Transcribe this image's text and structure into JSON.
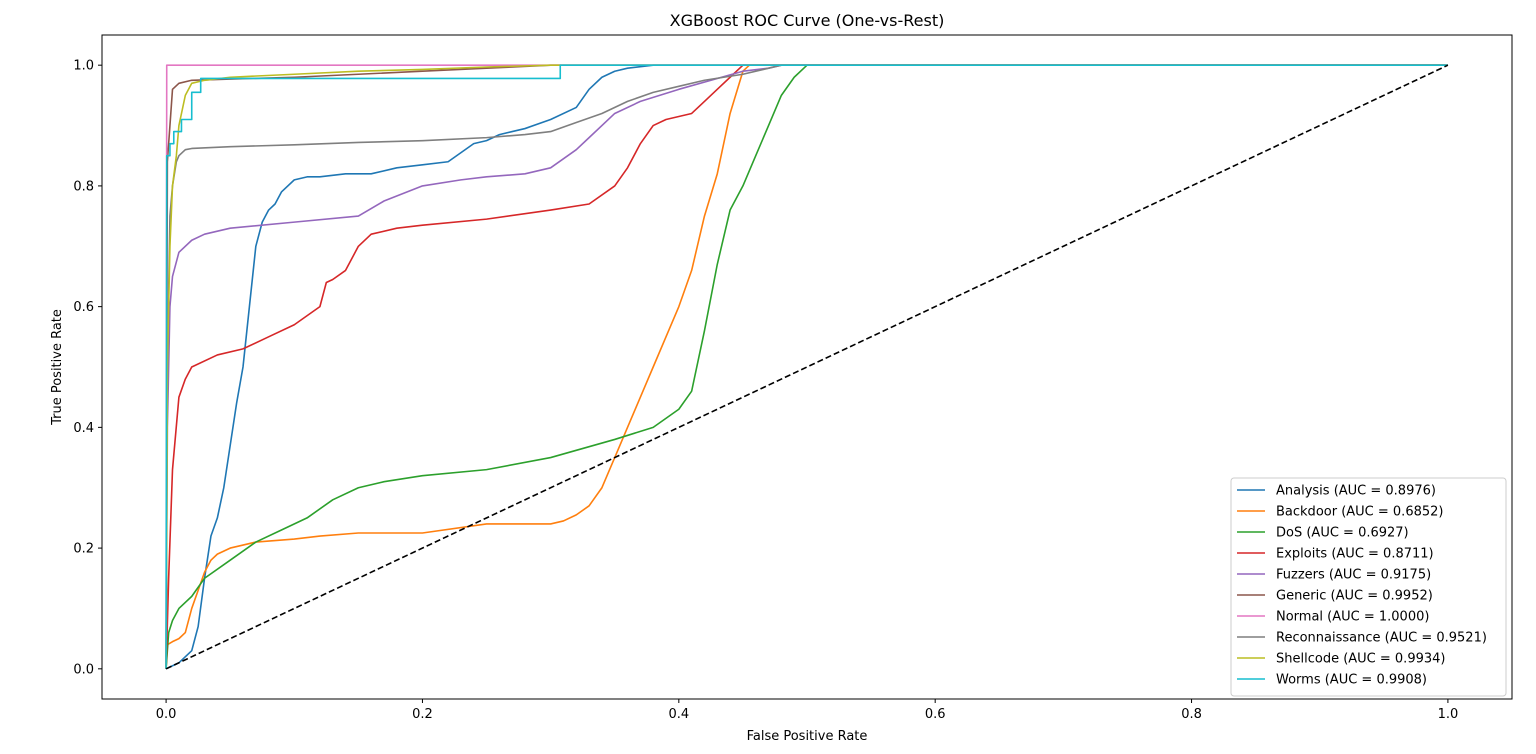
{
  "chart_data": {
    "type": "line",
    "title": "XGBoost ROC Curve (One-vs-Rest)",
    "xlabel": "False Positive Rate",
    "ylabel": "True Positive Rate",
    "xlim": [
      -0.05,
      1.05
    ],
    "ylim": [
      -0.05,
      1.05
    ],
    "x_ticks": [
      0.0,
      0.2,
      0.4,
      0.6,
      0.8,
      1.0
    ],
    "y_ticks": [
      0.0,
      0.2,
      0.4,
      0.6,
      0.8,
      1.0
    ],
    "x_tick_labels": [
      "0.0",
      "0.2",
      "0.4",
      "0.6",
      "0.8",
      "1.0"
    ],
    "y_tick_labels": [
      "0.0",
      "0.2",
      "0.4",
      "0.6",
      "0.8",
      "1.0"
    ],
    "grid": false,
    "legend_position": "lower-right",
    "series": [
      {
        "name": "Analysis (AUC = 0.8976)",
        "color": "#1f77b4",
        "x": [
          0,
          0.01,
          0.02,
          0.025,
          0.03,
          0.035,
          0.04,
          0.045,
          0.05,
          0.055,
          0.06,
          0.065,
          0.07,
          0.075,
          0.08,
          0.085,
          0.09,
          0.1,
          0.11,
          0.12,
          0.14,
          0.16,
          0.18,
          0.2,
          0.22,
          0.24,
          0.25,
          0.26,
          0.27,
          0.28,
          0.3,
          0.32,
          0.33,
          0.34,
          0.35,
          0.36,
          0.38,
          1.0
        ],
        "y": [
          0,
          0.01,
          0.03,
          0.07,
          0.15,
          0.22,
          0.25,
          0.3,
          0.37,
          0.44,
          0.5,
          0.6,
          0.7,
          0.74,
          0.76,
          0.77,
          0.79,
          0.81,
          0.815,
          0.815,
          0.82,
          0.82,
          0.83,
          0.835,
          0.84,
          0.87,
          0.875,
          0.885,
          0.89,
          0.895,
          0.91,
          0.93,
          0.96,
          0.98,
          0.99,
          0.995,
          1.0,
          1.0
        ]
      },
      {
        "name": "Backdoor (AUC = 0.6852)",
        "color": "#ff7f0e",
        "x": [
          0,
          0.001,
          0.005,
          0.01,
          0.015,
          0.02,
          0.025,
          0.03,
          0.035,
          0.04,
          0.045,
          0.05,
          0.06,
          0.07,
          0.1,
          0.12,
          0.15,
          0.2,
          0.25,
          0.3,
          0.31,
          0.32,
          0.33,
          0.34,
          0.35,
          0.36,
          0.37,
          0.38,
          0.39,
          0.4,
          0.41,
          0.42,
          0.43,
          0.44,
          0.45,
          0.455,
          0.47,
          1.0
        ],
        "y": [
          0,
          0.04,
          0.045,
          0.05,
          0.06,
          0.1,
          0.13,
          0.16,
          0.18,
          0.19,
          0.195,
          0.2,
          0.205,
          0.21,
          0.215,
          0.22,
          0.225,
          0.225,
          0.24,
          0.24,
          0.245,
          0.255,
          0.27,
          0.3,
          0.35,
          0.4,
          0.45,
          0.5,
          0.55,
          0.6,
          0.66,
          0.75,
          0.82,
          0.92,
          0.99,
          1.0,
          1.0,
          1.0
        ]
      },
      {
        "name": "DoS (AUC = 0.6927)",
        "color": "#2ca02c",
        "x": [
          0,
          0.002,
          0.005,
          0.01,
          0.02,
          0.03,
          0.05,
          0.07,
          0.09,
          0.11,
          0.13,
          0.15,
          0.17,
          0.2,
          0.25,
          0.3,
          0.35,
          0.38,
          0.4,
          0.41,
          0.42,
          0.43,
          0.44,
          0.45,
          0.46,
          0.47,
          0.48,
          0.49,
          0.5,
          1.0
        ],
        "y": [
          0,
          0.06,
          0.08,
          0.1,
          0.12,
          0.15,
          0.18,
          0.21,
          0.23,
          0.25,
          0.28,
          0.3,
          0.31,
          0.32,
          0.33,
          0.35,
          0.38,
          0.4,
          0.43,
          0.46,
          0.56,
          0.67,
          0.76,
          0.8,
          0.85,
          0.9,
          0.95,
          0.98,
          1.0,
          1.0
        ]
      },
      {
        "name": "Exploits (AUC = 0.8711)",
        "color": "#d62728",
        "x": [
          0,
          0.002,
          0.005,
          0.01,
          0.015,
          0.02,
          0.04,
          0.06,
          0.08,
          0.1,
          0.12,
          0.125,
          0.13,
          0.14,
          0.15,
          0.16,
          0.18,
          0.2,
          0.25,
          0.3,
          0.33,
          0.35,
          0.36,
          0.37,
          0.38,
          0.39,
          0.4,
          0.41,
          0.42,
          0.43,
          0.44,
          0.45,
          1.0
        ],
        "y": [
          0,
          0.15,
          0.33,
          0.45,
          0.48,
          0.5,
          0.52,
          0.53,
          0.55,
          0.57,
          0.6,
          0.64,
          0.645,
          0.66,
          0.7,
          0.72,
          0.73,
          0.735,
          0.745,
          0.76,
          0.77,
          0.8,
          0.83,
          0.87,
          0.9,
          0.91,
          0.915,
          0.92,
          0.94,
          0.96,
          0.98,
          1.0,
          1.0
        ]
      },
      {
        "name": "Fuzzers (AUC = 0.9175)",
        "color": "#9467bd",
        "x": [
          0,
          0.001,
          0.003,
          0.005,
          0.01,
          0.02,
          0.03,
          0.05,
          0.1,
          0.15,
          0.17,
          0.2,
          0.23,
          0.25,
          0.28,
          0.3,
          0.32,
          0.33,
          0.35,
          0.37,
          0.4,
          0.45,
          0.47,
          0.48,
          1.0
        ],
        "y": [
          0,
          0.4,
          0.6,
          0.65,
          0.69,
          0.71,
          0.72,
          0.73,
          0.74,
          0.75,
          0.775,
          0.8,
          0.81,
          0.815,
          0.82,
          0.83,
          0.86,
          0.88,
          0.92,
          0.94,
          0.96,
          0.99,
          0.995,
          1.0,
          1.0
        ]
      },
      {
        "name": "Generic (AUC = 0.9952)",
        "color": "#8c564b",
        "x": [
          0,
          0.001,
          0.003,
          0.005,
          0.01,
          0.02,
          0.05,
          0.1,
          0.15,
          0.2,
          0.25,
          0.3,
          0.35,
          1.0
        ],
        "y": [
          0,
          0.84,
          0.9,
          0.96,
          0.97,
          0.975,
          0.977,
          0.98,
          0.985,
          0.99,
          0.995,
          1.0,
          1.0,
          1.0
        ]
      },
      {
        "name": "Normal (AUC = 1.0000)",
        "color": "#e377c2",
        "x": [
          0,
          0.0005,
          1.0
        ],
        "y": [
          0,
          1.0,
          1.0
        ]
      },
      {
        "name": "Reconnaissance (AUC = 0.9521)",
        "color": "#7f7f7f",
        "x": [
          0,
          0.001,
          0.003,
          0.005,
          0.008,
          0.01,
          0.015,
          0.02,
          0.05,
          0.1,
          0.15,
          0.2,
          0.25,
          0.28,
          0.3,
          0.32,
          0.34,
          0.36,
          0.38,
          0.4,
          0.42,
          0.45,
          0.48,
          1.0
        ],
        "y": [
          0,
          0.5,
          0.75,
          0.8,
          0.84,
          0.85,
          0.86,
          0.862,
          0.865,
          0.868,
          0.872,
          0.875,
          0.88,
          0.885,
          0.89,
          0.905,
          0.92,
          0.94,
          0.955,
          0.965,
          0.975,
          0.985,
          1.0,
          1.0
        ]
      },
      {
        "name": "Shellcode (AUC = 0.9934)",
        "color": "#bcbd22",
        "x": [
          0,
          0.001,
          0.003,
          0.005,
          0.008,
          0.01,
          0.015,
          0.02,
          0.03,
          0.05,
          0.1,
          0.15,
          0.2,
          0.25,
          0.3,
          0.31,
          1.0
        ],
        "y": [
          0,
          0.5,
          0.7,
          0.8,
          0.85,
          0.9,
          0.95,
          0.97,
          0.975,
          0.98,
          0.985,
          0.99,
          0.993,
          0.997,
          1.0,
          1.0,
          1.0
        ]
      },
      {
        "name": "Worms (AUC = 0.9908)",
        "color": "#17becf",
        "x": [
          0,
          0.0005,
          0.003,
          0.003,
          0.006,
          0.006,
          0.012,
          0.012,
          0.02,
          0.02,
          0.027,
          0.027,
          0.3075,
          0.3075,
          1.0
        ],
        "y": [
          0,
          0.85,
          0.85,
          0.87,
          0.87,
          0.89,
          0.89,
          0.91,
          0.91,
          0.955,
          0.955,
          0.978,
          0.978,
          1.0,
          1.0
        ]
      }
    ],
    "reference_line": {
      "x": [
        0,
        1
      ],
      "y": [
        0,
        1
      ],
      "color": "#000000",
      "style": "dashed"
    }
  }
}
